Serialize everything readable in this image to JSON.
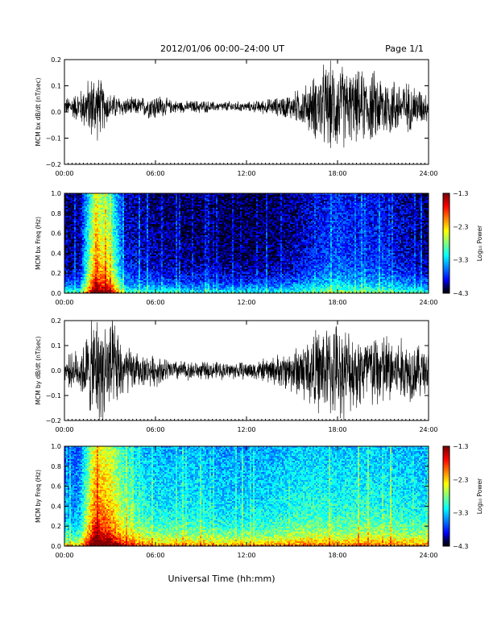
{
  "header": {
    "title": "2012/01/06  00:00–24:00 UT",
    "page": "Page 1/1"
  },
  "footer": {
    "xlabel": "Universal Time (hh:mm)"
  },
  "chart_data": [
    {
      "id": "bx_ts",
      "type": "line",
      "ylabel": "MCM bx dB/dt (nT/sec)",
      "xlim": [
        0,
        24
      ],
      "ylim": [
        -0.2,
        0.2
      ],
      "x_ticks": [
        "00:00",
        "06:00",
        "12:00",
        "18:00",
        "24:00"
      ],
      "y_ticks": [
        "0.2",
        "0.1",
        "0.0",
        "−0.1",
        "−0.2"
      ],
      "activity_hours": [
        0,
        1,
        2,
        3,
        4,
        5,
        6,
        7,
        8,
        9,
        10,
        11,
        12,
        13,
        14,
        15,
        16,
        17,
        18,
        19,
        20,
        21,
        22,
        23,
        24
      ],
      "activity_amplitude": [
        0.035,
        0.07,
        0.16,
        0.06,
        0.04,
        0.04,
        0.06,
        0.03,
        0.025,
        0.03,
        0.02,
        0.025,
        0.02,
        0.03,
        0.04,
        0.06,
        0.1,
        0.18,
        0.2,
        0.15,
        0.16,
        0.15,
        0.12,
        0.1,
        0.06
      ],
      "y_offset": 0.02
    },
    {
      "id": "bx_spec",
      "type": "heatmap",
      "ylabel": "MCM bx Freq (Hz)",
      "xlim": [
        0,
        24
      ],
      "ylim": [
        0,
        1.0
      ],
      "x_ticks": [
        "00:00",
        "06:00",
        "12:00",
        "18:00",
        "24:00"
      ],
      "y_ticks": [
        "1.0",
        "0.8",
        "0.6",
        "0.4",
        "0.2",
        "0.0"
      ],
      "colorbar": {
        "label": "Log₁₀ Power",
        "range": [
          -4.3,
          -1.3
        ],
        "ticks": [
          "−1.3",
          "−2.3",
          "−3.3",
          "−4.3"
        ]
      },
      "activity_hours": [
        0,
        1,
        2,
        3,
        4,
        5,
        6,
        7,
        8,
        9,
        10,
        11,
        12,
        13,
        14,
        15,
        16,
        17,
        18,
        19,
        20,
        21,
        22,
        23,
        24
      ],
      "activity_level": [
        0.05,
        0.1,
        0.85,
        0.7,
        0.15,
        0.12,
        0.1,
        0.08,
        0.06,
        0.07,
        0.05,
        0.05,
        0.05,
        0.06,
        0.07,
        0.1,
        0.15,
        0.2,
        0.25,
        0.2,
        0.2,
        0.18,
        0.15,
        0.12,
        0.08
      ]
    },
    {
      "id": "by_ts",
      "type": "line",
      "ylabel": "MCM by dB/dt (nT/sec)",
      "xlim": [
        0,
        24
      ],
      "ylim": [
        -0.2,
        0.2
      ],
      "x_ticks": [
        "00:00",
        "06:00",
        "12:00",
        "18:00",
        "24:00"
      ],
      "y_ticks": [
        "0.2",
        "0.1",
        "0.0",
        "−0.1",
        "−0.2"
      ],
      "activity_hours": [
        0,
        1,
        2,
        3,
        4,
        5,
        6,
        7,
        8,
        9,
        10,
        11,
        12,
        13,
        14,
        15,
        16,
        17,
        18,
        19,
        20,
        21,
        22,
        23,
        24
      ],
      "activity_amplitude": [
        0.06,
        0.1,
        0.25,
        0.25,
        0.12,
        0.07,
        0.07,
        0.05,
        0.045,
        0.04,
        0.04,
        0.04,
        0.04,
        0.05,
        0.07,
        0.1,
        0.16,
        0.2,
        0.22,
        0.18,
        0.18,
        0.18,
        0.15,
        0.14,
        0.1
      ],
      "y_offset": 0.0
    },
    {
      "id": "by_spec",
      "type": "heatmap",
      "ylabel": "MCM by Freq (Hz)",
      "xlim": [
        0,
        24
      ],
      "ylim": [
        0,
        1.0
      ],
      "x_ticks": [
        "00:00",
        "06:00",
        "12:00",
        "18:00",
        "24:00"
      ],
      "y_ticks": [
        "1.0",
        "0.8",
        "0.6",
        "0.4",
        "0.2",
        "0.0"
      ],
      "colorbar": {
        "label": "Log₁₀ Power",
        "range": [
          -4.3,
          -1.3
        ],
        "ticks": [
          "−1.3",
          "−2.3",
          "−3.3",
          "−4.3"
        ]
      },
      "activity_hours": [
        0,
        1,
        2,
        3,
        4,
        5,
        6,
        7,
        8,
        9,
        10,
        11,
        12,
        13,
        14,
        15,
        16,
        17,
        18,
        19,
        20,
        21,
        22,
        23,
        24
      ],
      "activity_level": [
        0.3,
        0.35,
        0.95,
        0.85,
        0.6,
        0.5,
        0.45,
        0.45,
        0.45,
        0.45,
        0.42,
        0.42,
        0.42,
        0.43,
        0.45,
        0.48,
        0.5,
        0.5,
        0.48,
        0.5,
        0.5,
        0.48,
        0.48,
        0.46,
        0.45
      ]
    }
  ]
}
